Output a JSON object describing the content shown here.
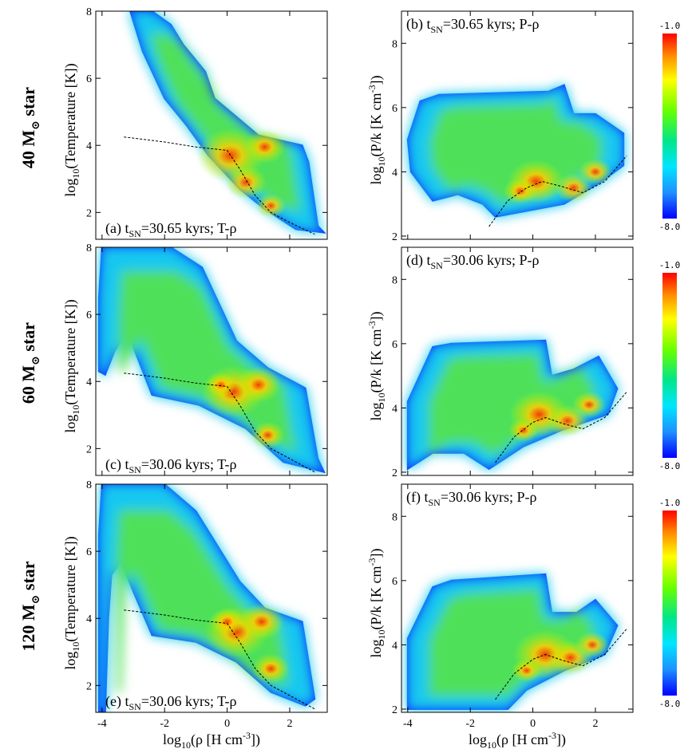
{
  "figure": {
    "row_labels": [
      {
        "mass": "40",
        "unit": "M",
        "sub": "⊙",
        "tail": "star"
      },
      {
        "mass": "60",
        "unit": "M",
        "sub": "⊙",
        "tail": "star"
      },
      {
        "mass": "120",
        "unit": "M",
        "sub": "⊙",
        "tail": "star"
      }
    ],
    "colorbar": {
      "max_label": "-1.0",
      "min_label": "-8.0",
      "colors": [
        "#ff0000",
        "#ffa500",
        "#ffff00",
        "#7cfc00",
        "#00e676",
        "#00e5ff",
        "#1e90ff",
        "#0000ff"
      ]
    }
  },
  "chart_data": [
    {
      "id": "a",
      "type": "heatmap",
      "row": 0,
      "col": 0,
      "label": {
        "prefix": "(a) t",
        "sub": "SN",
        "suffix": "=30.65 kyrs; T-ρ"
      },
      "ylabel": {
        "pre": "log",
        "sub": "10",
        "post": "(Temperature [K])"
      },
      "xlabel": {
        "pre": "log",
        "sub": "10",
        "post": "(ρ [H cm",
        "sup": "-3",
        "end": "])"
      },
      "xlim": [
        -4.2,
        3.2
      ],
      "ylim": [
        1.2,
        8.0
      ],
      "xticks": [
        -4,
        -2,
        0,
        2
      ],
      "xticklabels": [
        "-4",
        "-2",
        "0",
        "2"
      ],
      "yticks": [
        2,
        4,
        6,
        8
      ],
      "yticklabels": [
        "2",
        "4",
        "6",
        "8"
      ],
      "show_xticklabels": false,
      "envelope": [
        [
          -3.1,
          8
        ],
        [
          -2.4,
          8
        ],
        [
          -1.8,
          7.6
        ],
        [
          -1.4,
          7
        ],
        [
          -0.7,
          6.2
        ],
        [
          -0.4,
          5.4
        ],
        [
          1.0,
          4.3
        ],
        [
          2.4,
          4.0
        ],
        [
          2.6,
          3.5
        ],
        [
          2.9,
          1.6
        ],
        [
          3.1,
          1.4
        ],
        [
          2.2,
          1.5
        ],
        [
          1.2,
          2.1
        ],
        [
          0.4,
          2.7
        ],
        [
          -0.6,
          3.7
        ],
        [
          -1.3,
          4.6
        ],
        [
          -2.0,
          5.4
        ],
        [
          -2.7,
          6.8
        ]
      ],
      "hot": [
        [
          0.1,
          3.7,
          0.9
        ],
        [
          1.2,
          3.95,
          0.55
        ],
        [
          1.4,
          2.2,
          0.4
        ],
        [
          0.6,
          2.9,
          0.55
        ]
      ],
      "curve": [
        [
          -3.3,
          4.25
        ],
        [
          -2,
          4.1
        ],
        [
          -1,
          3.95
        ],
        [
          0,
          3.85
        ],
        [
          0.4,
          3.3
        ],
        [
          0.9,
          2.5
        ],
        [
          1.4,
          2.0
        ],
        [
          2.0,
          1.7
        ],
        [
          2.8,
          1.35
        ]
      ]
    },
    {
      "id": "b",
      "type": "heatmap",
      "row": 0,
      "col": 1,
      "label": {
        "prefix": "(b) t",
        "sub": "SN",
        "suffix": "=30.65 kyrs; P-ρ"
      },
      "ylabel": {
        "pre": "log",
        "sub": "10",
        "post": "(P/k [K cm",
        "sup": "-3",
        "end": "])"
      },
      "xlabel": {
        "pre": "log",
        "sub": "10",
        "post": "(ρ [H cm",
        "sup": "-3",
        "end": "])"
      },
      "xlim": [
        -4.2,
        3.2
      ],
      "ylim": [
        1.9,
        9.0
      ],
      "xticks": [
        -4,
        -2,
        0,
        2
      ],
      "xticklabels": [
        "-4",
        "-2",
        "0",
        "2"
      ],
      "yticks": [
        2,
        4,
        6,
        8
      ],
      "yticklabels": [
        "2",
        "4",
        "6",
        "8"
      ],
      "show_xticklabels": false,
      "envelope": [
        [
          -3.6,
          6.2
        ],
        [
          -3.0,
          6.4
        ],
        [
          0.5,
          6.5
        ],
        [
          1.0,
          6.7
        ],
        [
          1.3,
          5.8
        ],
        [
          2.0,
          5.8
        ],
        [
          2.9,
          5.2
        ],
        [
          2.9,
          4.2
        ],
        [
          2.2,
          3.7
        ],
        [
          1.0,
          3.0
        ],
        [
          -1.2,
          2.6
        ],
        [
          -1.6,
          3.0
        ],
        [
          -2.4,
          3.3
        ],
        [
          -3.2,
          3.1
        ],
        [
          -3.9,
          4.0
        ],
        [
          -4.0,
          5.0
        ]
      ],
      "hot": [
        [
          0.1,
          3.7,
          0.75
        ],
        [
          -0.4,
          3.4,
          0.45
        ],
        [
          1.3,
          3.5,
          0.5
        ],
        [
          2.0,
          4.0,
          0.45
        ]
      ],
      "curve": [
        [
          -1.4,
          2.3
        ],
        [
          -0.8,
          3.1
        ],
        [
          -0.2,
          3.5
        ],
        [
          0.3,
          3.7
        ],
        [
          0.9,
          3.55
        ],
        [
          1.6,
          3.35
        ],
        [
          2.3,
          3.7
        ],
        [
          3.0,
          4.5
        ]
      ]
    },
    {
      "id": "c",
      "type": "heatmap",
      "row": 1,
      "col": 0,
      "label": {
        "prefix": "(c) t",
        "sub": "SN",
        "suffix": "=30.06 kyrs; T-ρ"
      },
      "ylabel": {
        "pre": "log",
        "sub": "10",
        "post": "(Temperature [K])"
      },
      "xlabel": {
        "pre": "log",
        "sub": "10",
        "post": "(ρ [H cm",
        "sup": "-3",
        "end": "])"
      },
      "xlim": [
        -4.2,
        3.2
      ],
      "ylim": [
        1.2,
        8.0
      ],
      "xticks": [
        -4,
        -2,
        0,
        2
      ],
      "xticklabels": [
        "-4",
        "-2",
        "0",
        "2"
      ],
      "yticks": [
        2,
        4,
        6,
        8
      ],
      "yticklabels": [
        "2",
        "4",
        "6",
        "8"
      ],
      "show_xticklabels": false,
      "envelope": [
        [
          -4.0,
          8
        ],
        [
          -1.8,
          8
        ],
        [
          -0.8,
          7.4
        ],
        [
          0.3,
          5.2
        ],
        [
          1.3,
          4.4
        ],
        [
          2.5,
          3.8
        ],
        [
          2.9,
          1.7
        ],
        [
          3.1,
          1.3
        ],
        [
          1.8,
          1.6
        ],
        [
          0.6,
          2.6
        ],
        [
          -0.9,
          3.3
        ],
        [
          -2.4,
          3.6
        ],
        [
          -3.2,
          5.5
        ],
        [
          -3.6,
          4.9
        ],
        [
          -3.9,
          4.2
        ],
        [
          -4.1,
          4.3
        ],
        [
          -4.1,
          6.5
        ]
      ],
      "hot": [
        [
          0.2,
          3.7,
          0.85
        ],
        [
          1.0,
          3.9,
          0.6
        ],
        [
          1.3,
          2.4,
          0.45
        ],
        [
          -0.2,
          3.9,
          0.4
        ]
      ],
      "curve": [
        [
          -3.3,
          4.25
        ],
        [
          -2,
          4.1
        ],
        [
          -1,
          3.95
        ],
        [
          0,
          3.85
        ],
        [
          0.4,
          3.3
        ],
        [
          0.9,
          2.5
        ],
        [
          1.4,
          2.0
        ],
        [
          2.0,
          1.7
        ],
        [
          2.8,
          1.3
        ]
      ]
    },
    {
      "id": "d",
      "type": "heatmap",
      "row": 1,
      "col": 1,
      "label": {
        "prefix": "(d) t",
        "sub": "SN",
        "suffix": "=30.06 kyrs; P-ρ"
      },
      "ylabel": {
        "pre": "log",
        "sub": "10",
        "post": "(P/k [K cm",
        "sup": "-3",
        "end": "])"
      },
      "xlabel": {
        "pre": "log",
        "sub": "10",
        "post": "(ρ [H cm",
        "sup": "-3",
        "end": "])"
      },
      "xlim": [
        -4.2,
        3.2
      ],
      "ylim": [
        1.9,
        9.0
      ],
      "xticks": [
        -4,
        -2,
        0,
        2
      ],
      "xticklabels": [
        "-4",
        "-2",
        "0",
        "2"
      ],
      "yticks": [
        2,
        4,
        6,
        8
      ],
      "yticklabels": [
        "2",
        "4",
        "6",
        "8"
      ],
      "show_xticklabels": false,
      "envelope": [
        [
          -4.0,
          4.2
        ],
        [
          -3.2,
          5.9
        ],
        [
          -2.6,
          6.0
        ],
        [
          0.4,
          6.1
        ],
        [
          0.6,
          5.0
        ],
        [
          1.3,
          5.2
        ],
        [
          2.1,
          5.6
        ],
        [
          2.7,
          4.6
        ],
        [
          2.4,
          3.8
        ],
        [
          0.9,
          3.3
        ],
        [
          -0.3,
          2.8
        ],
        [
          -1.4,
          2.1
        ],
        [
          -2.2,
          2.6
        ],
        [
          -3.2,
          2.6
        ],
        [
          -4.0,
          2.1
        ]
      ],
      "hot": [
        [
          0.2,
          3.8,
          0.8
        ],
        [
          1.1,
          3.6,
          0.55
        ],
        [
          1.8,
          4.1,
          0.45
        ],
        [
          -0.3,
          3.3,
          0.4
        ]
      ],
      "curve": [
        [
          -1.2,
          2.3
        ],
        [
          -0.6,
          3.1
        ],
        [
          0,
          3.55
        ],
        [
          0.4,
          3.7
        ],
        [
          1.0,
          3.5
        ],
        [
          1.6,
          3.35
        ],
        [
          2.3,
          3.7
        ],
        [
          3.0,
          4.5
        ]
      ]
    },
    {
      "id": "e",
      "type": "heatmap",
      "row": 2,
      "col": 0,
      "label": {
        "prefix": "(e) t",
        "sub": "SN",
        "suffix": "=30.06 kyrs; T-ρ"
      },
      "ylabel": {
        "pre": "log",
        "sub": "10",
        "post": "(Temperature [K])"
      },
      "xlabel": {
        "pre": "log",
        "sub": "10",
        "post": "(ρ [H cm",
        "sup": "-3",
        "end": "])"
      },
      "xlim": [
        -4.2,
        3.2
      ],
      "ylim": [
        1.2,
        8.0
      ],
      "xticks": [
        -4,
        -2,
        0,
        2
      ],
      "xticklabels": [
        "-4",
        "-2",
        "0",
        "2"
      ],
      "yticks": [
        2,
        4,
        6,
        8
      ],
      "yticklabels": [
        "2",
        "4",
        "6",
        "8"
      ],
      "show_xticklabels": true,
      "envelope": [
        [
          -4.0,
          8
        ],
        [
          -2.0,
          8
        ],
        [
          -1.0,
          7.2
        ],
        [
          0.4,
          5.1
        ],
        [
          1.2,
          4.3
        ],
        [
          2.4,
          3.9
        ],
        [
          2.8,
          1.6
        ],
        [
          2.5,
          1.4
        ],
        [
          1.4,
          1.8
        ],
        [
          0.3,
          2.7
        ],
        [
          -1.0,
          3.3
        ],
        [
          -2.4,
          3.5
        ],
        [
          -3.0,
          4.8
        ],
        [
          -3.4,
          5.7
        ],
        [
          -3.7,
          5.3
        ],
        [
          -3.8,
          4.0
        ],
        [
          -3.9,
          1.2
        ],
        [
          -4.1,
          1.2
        ],
        [
          -4.1,
          6.5
        ]
      ],
      "hot": [
        [
          0.3,
          3.6,
          0.85
        ],
        [
          1.1,
          3.9,
          0.6
        ],
        [
          1.4,
          2.5,
          0.5
        ],
        [
          0.0,
          3.9,
          0.45
        ]
      ],
      "curve": [
        [
          -3.3,
          4.25
        ],
        [
          -2,
          4.1
        ],
        [
          -1,
          3.95
        ],
        [
          0,
          3.85
        ],
        [
          0.4,
          3.3
        ],
        [
          0.9,
          2.5
        ],
        [
          1.4,
          2.0
        ],
        [
          2.0,
          1.7
        ],
        [
          2.8,
          1.3
        ]
      ]
    },
    {
      "id": "f",
      "type": "heatmap",
      "row": 2,
      "col": 1,
      "label": {
        "prefix": "(f) t",
        "sub": "SN",
        "suffix": "=30.06 kyrs; P-ρ"
      },
      "ylabel": {
        "pre": "log",
        "sub": "10",
        "post": "(P/k [K cm",
        "sup": "-3",
        "end": "])"
      },
      "xlabel": {
        "pre": "log",
        "sub": "10",
        "post": "(ρ [H cm",
        "sup": "-3",
        "end": "])"
      },
      "xlim": [
        -4.2,
        3.2
      ],
      "ylim": [
        1.9,
        9.0
      ],
      "xticks": [
        -4,
        -2,
        0,
        2
      ],
      "xticklabels": [
        "-4",
        "-2",
        "0",
        "2"
      ],
      "yticks": [
        2,
        4,
        6,
        8
      ],
      "yticklabels": [
        "2",
        "4",
        "6",
        "8"
      ],
      "show_xticklabels": true,
      "envelope": [
        [
          -4.0,
          4.2
        ],
        [
          -3.2,
          5.8
        ],
        [
          -2.6,
          6.0
        ],
        [
          0.4,
          6.2
        ],
        [
          0.6,
          5.0
        ],
        [
          1.4,
          5.0
        ],
        [
          2.0,
          5.4
        ],
        [
          2.7,
          4.6
        ],
        [
          2.3,
          3.7
        ],
        [
          1.0,
          3.2
        ],
        [
          -0.2,
          2.6
        ],
        [
          -0.8,
          2.0
        ],
        [
          -2.0,
          2.0
        ],
        [
          -3.6,
          2.0
        ],
        [
          -4.0,
          2.0
        ]
      ],
      "hot": [
        [
          0.4,
          3.7,
          0.85
        ],
        [
          1.2,
          3.6,
          0.6
        ],
        [
          1.9,
          4.0,
          0.45
        ],
        [
          -0.2,
          3.2,
          0.4
        ]
      ],
      "curve": [
        [
          -1.2,
          2.3
        ],
        [
          -0.6,
          3.1
        ],
        [
          0,
          3.55
        ],
        [
          0.4,
          3.7
        ],
        [
          1.0,
          3.5
        ],
        [
          1.6,
          3.35
        ],
        [
          2.3,
          3.7
        ],
        [
          3.0,
          4.5
        ]
      ]
    }
  ]
}
